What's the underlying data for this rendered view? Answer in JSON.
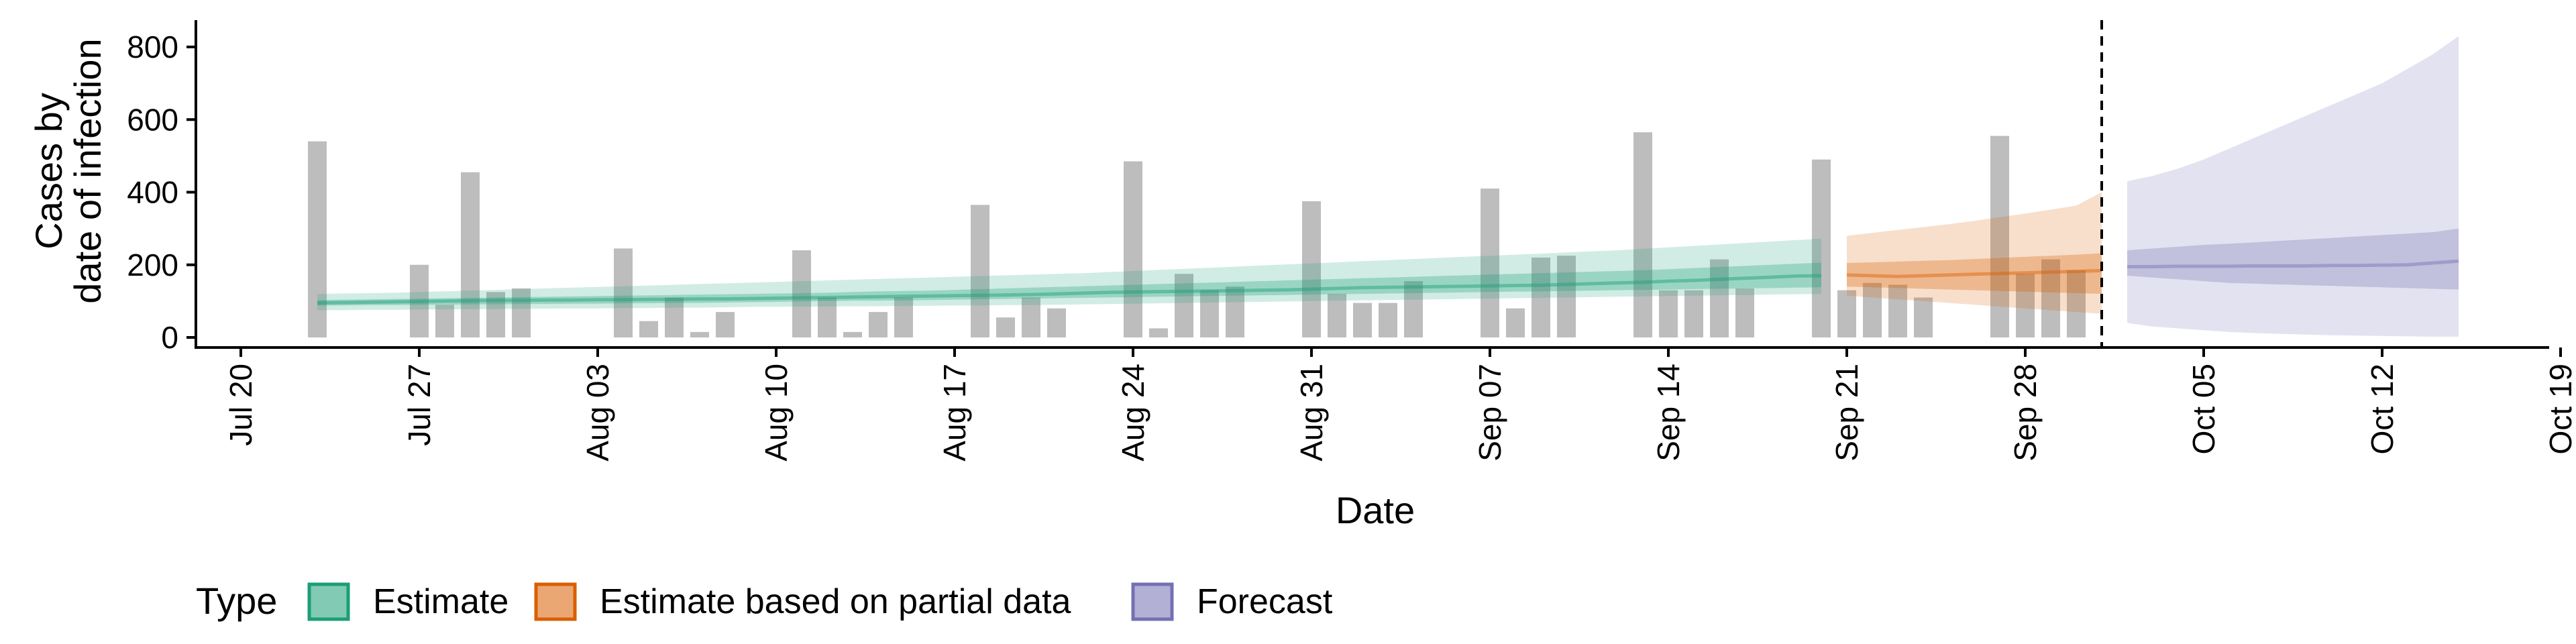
{
  "chart_data": {
    "type": "bar",
    "title": "",
    "xlabel": "Date",
    "ylabel": [
      "Cases by",
      "date of infection"
    ],
    "x_ticks": [
      "Jul 20",
      "Jul 27",
      "Aug 03",
      "Aug 10",
      "Aug 17",
      "Aug 24",
      "Aug 31",
      "Sep 07",
      "Sep 14",
      "Sep 21",
      "Sep 28",
      "Oct 05",
      "Oct 12",
      "Oct 19"
    ],
    "y_ticks": [
      0,
      200,
      400,
      600,
      800
    ],
    "xlim": [
      "2020-07-20",
      "2020-10-19"
    ],
    "ylim": [
      0,
      860
    ],
    "vline_date": "2020-10-01",
    "grid": false,
    "bars": {
      "start_date": "2020-07-23",
      "values": [
        540,
        0,
        0,
        0,
        200,
        90,
        455,
        125,
        135,
        0,
        0,
        0,
        245,
        45,
        110,
        15,
        70,
        0,
        0,
        240,
        110,
        15,
        70,
        110,
        0,
        0,
        365,
        55,
        110,
        80,
        0,
        0,
        485,
        25,
        175,
        130,
        140,
        0,
        0,
        375,
        120,
        95,
        95,
        155,
        0,
        0,
        410,
        80,
        220,
        225,
        0,
        0,
        565,
        130,
        130,
        215,
        135,
        0,
        0,
        490,
        130,
        150,
        145,
        110,
        0,
        0,
        555,
        175,
        215,
        185
      ]
    },
    "series": [
      {
        "name": "Estimate",
        "color": "#1b9e77",
        "start_date": "2020-07-23",
        "median": [
          95,
          96,
          97,
          98,
          99,
          100,
          101,
          102,
          102,
          103,
          103,
          104,
          104,
          105,
          105,
          106,
          106,
          107,
          108,
          109,
          110,
          111,
          112,
          113,
          114,
          115,
          116,
          117,
          118,
          120,
          122,
          124,
          125,
          126,
          127,
          128,
          129,
          130,
          131,
          133,
          135,
          137,
          138,
          139,
          140,
          141,
          142,
          143,
          144,
          146,
          148,
          150,
          152,
          155,
          157,
          160,
          163,
          166,
          169,
          170
        ],
        "inner": [
          [
            88,
            103
          ],
          [
            88,
            104
          ],
          [
            89,
            105
          ],
          [
            89,
            106
          ],
          [
            90,
            107
          ],
          [
            90,
            108
          ],
          [
            91,
            109
          ],
          [
            91,
            110
          ],
          [
            92,
            111
          ],
          [
            92,
            112
          ],
          [
            93,
            113
          ],
          [
            93,
            114
          ],
          [
            94,
            115
          ],
          [
            94,
            116
          ],
          [
            95,
            117
          ],
          [
            95,
            118
          ],
          [
            96,
            119
          ],
          [
            97,
            120
          ],
          [
            98,
            121
          ],
          [
            99,
            122
          ],
          [
            100,
            123
          ],
          [
            101,
            125
          ],
          [
            101,
            127
          ],
          [
            102,
            128
          ],
          [
            103,
            129
          ],
          [
            104,
            131
          ],
          [
            105,
            133
          ],
          [
            106,
            135
          ],
          [
            107,
            137
          ],
          [
            108,
            139
          ],
          [
            109,
            141
          ],
          [
            110,
            143
          ],
          [
            111,
            145
          ],
          [
            112,
            147
          ],
          [
            113,
            149
          ],
          [
            114,
            151
          ],
          [
            115,
            153
          ],
          [
            116,
            155
          ],
          [
            117,
            157
          ],
          [
            118,
            159
          ],
          [
            119,
            161
          ],
          [
            120,
            163
          ],
          [
            121,
            165
          ],
          [
            122,
            167
          ],
          [
            123,
            169
          ],
          [
            124,
            171
          ],
          [
            125,
            173
          ],
          [
            126,
            175
          ],
          [
            127,
            177
          ],
          [
            128,
            179
          ],
          [
            129,
            181
          ],
          [
            130,
            183
          ],
          [
            131,
            185
          ],
          [
            132,
            188
          ],
          [
            133,
            191
          ],
          [
            134,
            194
          ],
          [
            135,
            197
          ],
          [
            136,
            200
          ],
          [
            137,
            203
          ],
          [
            138,
            206
          ]
        ],
        "outer": [
          [
            75,
            120
          ],
          [
            75,
            121
          ],
          [
            76,
            122
          ],
          [
            76,
            123
          ],
          [
            77,
            125
          ],
          [
            77,
            127
          ],
          [
            78,
            129
          ],
          [
            78,
            131
          ],
          [
            79,
            133
          ],
          [
            79,
            135
          ],
          [
            80,
            137
          ],
          [
            80,
            139
          ],
          [
            81,
            141
          ],
          [
            81,
            143
          ],
          [
            82,
            145
          ],
          [
            82,
            147
          ],
          [
            83,
            149
          ],
          [
            84,
            151
          ],
          [
            84,
            153
          ],
          [
            85,
            155
          ],
          [
            85,
            157
          ],
          [
            86,
            159
          ],
          [
            86,
            161
          ],
          [
            87,
            163
          ],
          [
            87,
            165
          ],
          [
            88,
            167
          ],
          [
            88,
            169
          ],
          [
            89,
            171
          ],
          [
            89,
            173
          ],
          [
            90,
            175
          ],
          [
            91,
            177
          ],
          [
            92,
            180
          ],
          [
            93,
            183
          ],
          [
            94,
            186
          ],
          [
            95,
            189
          ],
          [
            96,
            192
          ],
          [
            97,
            195
          ],
          [
            98,
            198
          ],
          [
            99,
            201
          ],
          [
            100,
            204
          ],
          [
            101,
            207
          ],
          [
            102,
            210
          ],
          [
            103,
            213
          ],
          [
            104,
            216
          ],
          [
            105,
            219
          ],
          [
            106,
            222
          ],
          [
            107,
            225
          ],
          [
            108,
            228
          ],
          [
            109,
            231
          ],
          [
            110,
            234
          ],
          [
            111,
            237
          ],
          [
            112,
            240
          ],
          [
            113,
            244
          ],
          [
            114,
            248
          ],
          [
            115,
            252
          ],
          [
            116,
            256
          ],
          [
            117,
            260
          ],
          [
            118,
            264
          ],
          [
            119,
            268
          ],
          [
            120,
            272
          ]
        ]
      },
      {
        "name": "Estimate based on partial data",
        "color": "#d95f02",
        "start_date": "2020-09-21",
        "median": [
          172,
          170,
          168,
          170,
          172,
          174,
          176,
          178,
          180,
          182,
          184
        ],
        "inner": [
          [
            140,
            205
          ],
          [
            138,
            207
          ],
          [
            136,
            209
          ],
          [
            134,
            211
          ],
          [
            132,
            213
          ],
          [
            130,
            216
          ],
          [
            128,
            219
          ],
          [
            126,
            222
          ],
          [
            124,
            225
          ],
          [
            122,
            228
          ],
          [
            120,
            232
          ]
        ],
        "outer": [
          [
            115,
            280
          ],
          [
            110,
            288
          ],
          [
            105,
            296
          ],
          [
            100,
            304
          ],
          [
            95,
            312
          ],
          [
            90,
            321
          ],
          [
            85,
            331
          ],
          [
            80,
            341
          ],
          [
            75,
            352
          ],
          [
            70,
            363
          ],
          [
            65,
            400
          ]
        ]
      },
      {
        "name": "Forecast",
        "color": "#7570b3",
        "start_date": "2020-10-02",
        "median": [
          195,
          195,
          196,
          196,
          196,
          197,
          197,
          197,
          198,
          198,
          199,
          200,
          205,
          210
        ],
        "inner": [
          [
            170,
            240
          ],
          [
            165,
            245
          ],
          [
            160,
            250
          ],
          [
            155,
            255
          ],
          [
            150,
            258
          ],
          [
            148,
            262
          ],
          [
            146,
            266
          ],
          [
            144,
            270
          ],
          [
            142,
            274
          ],
          [
            140,
            278
          ],
          [
            138,
            282
          ],
          [
            136,
            286
          ],
          [
            134,
            290
          ],
          [
            132,
            300
          ]
        ],
        "outer": [
          [
            40,
            430
          ],
          [
            30,
            445
          ],
          [
            25,
            465
          ],
          [
            20,
            490
          ],
          [
            15,
            520
          ],
          [
            12,
            550
          ],
          [
            10,
            580
          ],
          [
            8,
            610
          ],
          [
            6,
            640
          ],
          [
            5,
            670
          ],
          [
            4,
            700
          ],
          [
            3,
            740
          ],
          [
            2,
            780
          ],
          [
            2,
            830
          ]
        ]
      }
    ],
    "legend": {
      "title": "Type",
      "position": "bottom",
      "items": [
        "Estimate",
        "Estimate based on partial data",
        "Forecast"
      ]
    }
  }
}
